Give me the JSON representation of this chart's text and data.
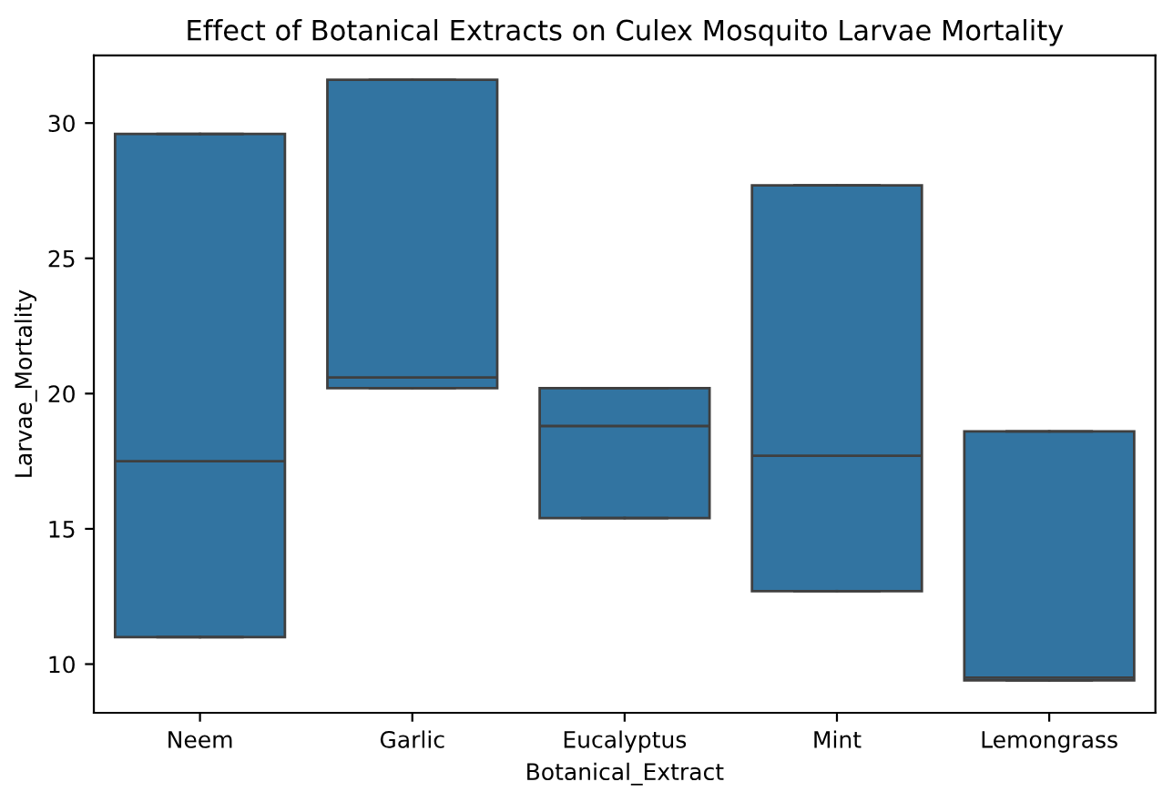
{
  "chart_data": {
    "type": "box",
    "title": "Effect of Botanical Extracts on Culex Mosquito Larvae Mortality",
    "xlabel": "Botanical_Extract",
    "ylabel": "Larvae_Mortality",
    "categories": [
      "Neem",
      "Garlic",
      "Eucalyptus",
      "Mint",
      "Lemongrass"
    ],
    "color": "#3274a1",
    "boxes": [
      {
        "low": 11.0,
        "q1": 11.0,
        "median": 17.5,
        "q3": 29.6,
        "high": 29.6
      },
      {
        "low": 20.2,
        "q1": 20.2,
        "median": 20.6,
        "q3": 31.6,
        "high": 31.6
      },
      {
        "low": 15.4,
        "q1": 15.4,
        "median": 18.8,
        "q3": 20.2,
        "high": 20.2
      },
      {
        "low": 12.7,
        "q1": 12.7,
        "median": 17.7,
        "q3": 27.7,
        "high": 27.7
      },
      {
        "low": 9.4,
        "q1": 9.4,
        "median": 9.5,
        "q3": 18.6,
        "high": 18.6
      }
    ],
    "ylim": [
      8.2,
      32.5
    ],
    "yticks": [
      10,
      15,
      20,
      25,
      30
    ],
    "grid": false
  }
}
